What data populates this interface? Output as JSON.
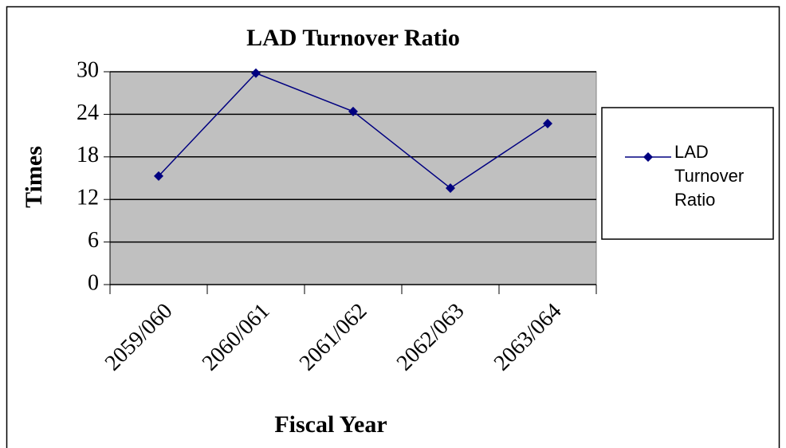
{
  "chart_data": {
    "type": "line",
    "title": "LAD Turnover Ratio",
    "x_label": "Fiscal Year",
    "y_label": "Times",
    "categories": [
      "2059/060",
      "2060/061",
      "2061/062",
      "2062/063",
      "2063/064"
    ],
    "series": [
      {
        "name": "LAD Turnover Ratio",
        "color": "#000080",
        "values": [
          15.3,
          29.8,
          24.4,
          13.6,
          22.7
        ]
      }
    ],
    "ylim": [
      0,
      30
    ],
    "yticks": [
      0,
      6,
      12,
      18,
      24,
      30
    ],
    "grid": true,
    "legend": "right"
  }
}
